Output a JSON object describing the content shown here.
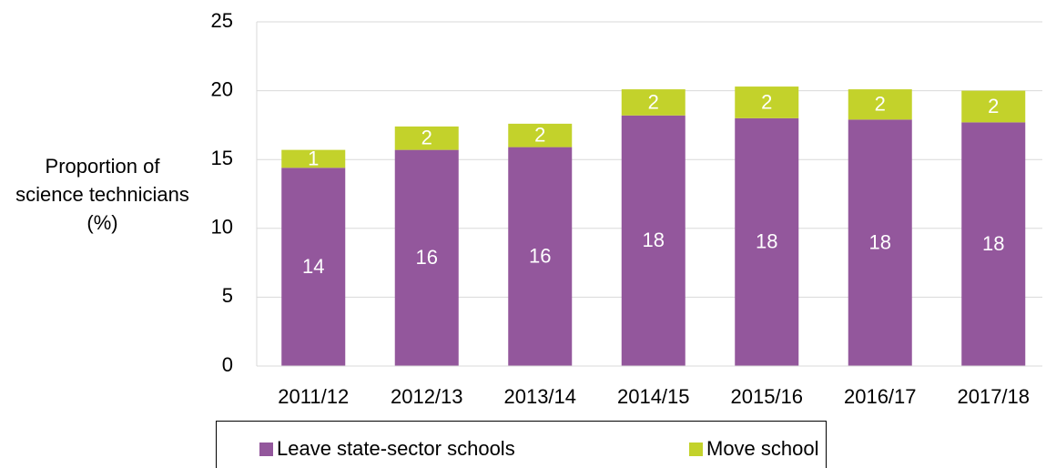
{
  "chart_data": {
    "type": "stacked_bar",
    "y_label": "Proportion of science technicians (%)",
    "categories": [
      "2011/12",
      "2012/13",
      "2013/14",
      "2014/15",
      "2015/16",
      "2016/17",
      "2017/18"
    ],
    "series": [
      {
        "name": "Leave state-sector schools",
        "color": "#93579c",
        "values": [
          14.4,
          15.7,
          15.9,
          18.2,
          18.0,
          17.9,
          17.7
        ],
        "value_labels": [
          "14",
          "16",
          "16",
          "18",
          "18",
          "18",
          "18"
        ]
      },
      {
        "name": "Move school",
        "color": "#c3d22b",
        "values": [
          1.3,
          1.7,
          1.7,
          1.9,
          2.3,
          2.2,
          2.3
        ],
        "value_labels": [
          "1",
          "2",
          "2",
          "2",
          "2",
          "2",
          "2"
        ]
      }
    ],
    "ylim": [
      0,
      25
    ],
    "yticks": [
      0,
      5,
      10,
      15,
      20,
      25
    ],
    "grid": true,
    "legend": "bottom"
  }
}
